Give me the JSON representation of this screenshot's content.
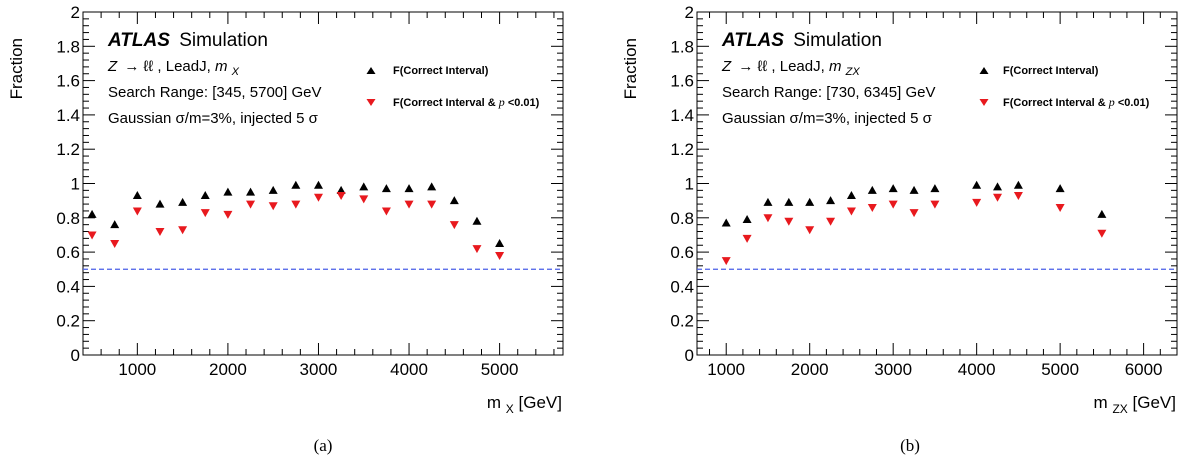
{
  "panels": [
    {
      "id": "a",
      "caption": "(a)",
      "experiment": "ATLAS",
      "experiment_suffix": "Simulation",
      "lines": {
        "process_symbol": "Z",
        "process_arrow": "→ ℓℓ",
        "process_rest": ", LeadJ, ",
        "mass_symbol": "m",
        "mass_sub": "X",
        "search_range": "Search Range: [345, 5700] GeV",
        "signal": "Gaussian σ/m=3%, injected 5 σ"
      },
      "legend": {
        "entry1": "F(Correct Interval)",
        "entry2_prefix": "F(Correct Interval & ",
        "entry2_p": "p",
        "entry2_suffix": "<0.01)"
      },
      "ylabel": "Fraction",
      "xlabel_main": "m",
      "xlabel_sub": "X",
      "xlabel_unit": " [GeV]"
    },
    {
      "id": "b",
      "caption": "(b)",
      "experiment": "ATLAS",
      "experiment_suffix": "Simulation",
      "lines": {
        "process_symbol": "Z",
        "process_arrow": "→ ℓℓ",
        "process_rest": ", LeadJ, ",
        "mass_symbol": "m",
        "mass_sub": "ZX",
        "search_range": "Search Range: [730, 6345] GeV",
        "signal": "Gaussian σ/m=3%, injected 5 σ"
      },
      "legend": {
        "entry1": "F(Correct Interval)",
        "entry2_prefix": "F(Correct Interval & ",
        "entry2_p": "p",
        "entry2_suffix": "<0.01)"
      },
      "ylabel": "Fraction",
      "xlabel_main": "m",
      "xlabel_sub": "ZX",
      "xlabel_unit": " [GeV]"
    }
  ],
  "colors": {
    "series1": "#000000",
    "series2": "#e8191e",
    "reference_line": "#4a5ee8",
    "axis": "#000000"
  },
  "chart_data": [
    {
      "type": "scatter",
      "xlim": [
        400,
        5700
      ],
      "ylim": [
        0,
        2
      ],
      "xticks": [
        1000,
        2000,
        3000,
        4000,
        5000
      ],
      "yticks": [
        0,
        0.2,
        0.4,
        0.6,
        0.8,
        1,
        1.2,
        1.4,
        1.6,
        1.8,
        2
      ],
      "reference_line_y": 0.5,
      "legend_position": "top-right",
      "series": [
        {
          "name": "F(Correct Interval)",
          "marker": "triangle-up",
          "x": [
            500,
            750,
            1000,
            1250,
            1500,
            1750,
            2000,
            2250,
            2500,
            2750,
            3000,
            3250,
            3500,
            3750,
            4000,
            4250,
            4500,
            4750,
            5000
          ],
          "y": [
            0.82,
            0.76,
            0.93,
            0.88,
            0.89,
            0.93,
            0.95,
            0.95,
            0.96,
            0.99,
            0.99,
            0.96,
            0.98,
            0.97,
            0.97,
            0.98,
            0.9,
            0.78,
            0.65
          ]
        },
        {
          "name": "F(Correct Interval & p<0.01)",
          "marker": "triangle-down",
          "x": [
            500,
            750,
            1000,
            1250,
            1500,
            1750,
            2000,
            2250,
            2500,
            2750,
            3000,
            3250,
            3500,
            3750,
            4000,
            4250,
            4500,
            4750,
            5000
          ],
          "y": [
            0.7,
            0.65,
            0.84,
            0.72,
            0.73,
            0.83,
            0.82,
            0.88,
            0.87,
            0.88,
            0.92,
            0.93,
            0.91,
            0.84,
            0.88,
            0.88,
            0.76,
            0.62,
            0.58
          ]
        }
      ]
    },
    {
      "type": "scatter",
      "xlim": [
        650,
        6400
      ],
      "ylim": [
        0,
        2
      ],
      "xticks": [
        1000,
        2000,
        3000,
        4000,
        5000,
        6000
      ],
      "yticks": [
        0,
        0.2,
        0.4,
        0.6,
        0.8,
        1,
        1.2,
        1.4,
        1.6,
        1.8,
        2
      ],
      "reference_line_y": 0.5,
      "legend_position": "top-right",
      "series": [
        {
          "name": "F(Correct Interval)",
          "marker": "triangle-up",
          "x": [
            1000,
            1250,
            1500,
            1750,
            2000,
            2250,
            2500,
            2750,
            3000,
            3250,
            3500,
            4000,
            4250,
            4500,
            5000,
            5500
          ],
          "y": [
            0.77,
            0.79,
            0.89,
            0.89,
            0.89,
            0.9,
            0.93,
            0.96,
            0.97,
            0.96,
            0.97,
            0.99,
            0.98,
            0.99,
            0.97,
            0.82
          ]
        },
        {
          "name": "F(Correct Interval & p<0.01)",
          "marker": "triangle-down",
          "x": [
            1000,
            1250,
            1500,
            1750,
            2000,
            2250,
            2500,
            2750,
            3000,
            3250,
            3500,
            4000,
            4250,
            4500,
            5000,
            5500
          ],
          "y": [
            0.55,
            0.68,
            0.8,
            0.78,
            0.73,
            0.78,
            0.84,
            0.86,
            0.88,
            0.83,
            0.88,
            0.89,
            0.92,
            0.93,
            0.86,
            0.71
          ]
        }
      ]
    }
  ]
}
